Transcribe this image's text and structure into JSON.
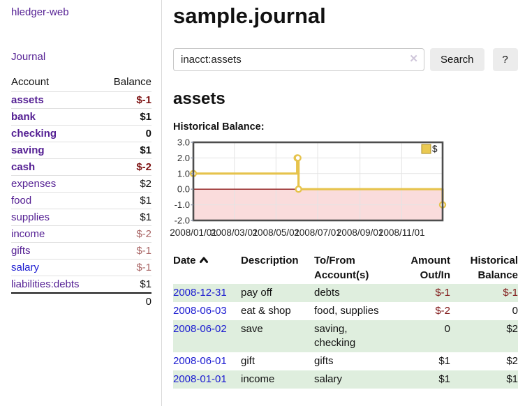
{
  "app": {
    "brand": "hledger-web",
    "nav_journal": "Journal"
  },
  "sidebar": {
    "headers": {
      "account": "Account",
      "balance": "Balance"
    },
    "accounts": [
      {
        "name": "assets",
        "balance": "$-1",
        "depth": 1,
        "bold": true,
        "balance_class": "neg"
      },
      {
        "name": "bank",
        "balance": "$1",
        "depth": 2,
        "bold": true,
        "balance_class": ""
      },
      {
        "name": "checking",
        "balance": "0",
        "depth": 3,
        "bold": true,
        "balance_class": ""
      },
      {
        "name": "saving",
        "balance": "$1",
        "depth": 3,
        "bold": true,
        "balance_class": ""
      },
      {
        "name": "cash",
        "balance": "$-2",
        "depth": 2,
        "bold": true,
        "balance_class": "neg"
      },
      {
        "name": "expenses",
        "balance": "$2",
        "depth": 1,
        "bold": false,
        "balance_class": ""
      },
      {
        "name": "food",
        "balance": "$1",
        "depth": 2,
        "bold": false,
        "balance_class": ""
      },
      {
        "name": "supplies",
        "balance": "$1",
        "depth": 2,
        "bold": false,
        "balance_class": ""
      },
      {
        "name": "income",
        "balance": "$-2",
        "depth": 1,
        "bold": false,
        "balance_class": "neg-faded"
      },
      {
        "name": "gifts",
        "balance": "$-1",
        "depth": 2,
        "bold": false,
        "balance_class": "neg-faded"
      },
      {
        "name": "salary",
        "balance": "$-1",
        "depth": 2,
        "bold": false,
        "balance_class": "neg-faded",
        "link_blue": true
      },
      {
        "name": "liabilities:debts",
        "balance": "$1",
        "depth": 1,
        "bold": false,
        "balance_class": ""
      }
    ],
    "total": "0"
  },
  "header": {
    "title": "sample.journal"
  },
  "search": {
    "value": "inacct:assets",
    "clear_icon": "✕",
    "button": "Search",
    "help_button": "?"
  },
  "account_page": {
    "title": "assets",
    "chart_label": "Historical Balance:"
  },
  "chart_data": {
    "type": "line",
    "title": "Historical Balance",
    "step": true,
    "grid": true,
    "legend": [
      {
        "label": "$",
        "color": "#eac951"
      }
    ],
    "legend_position": "top-right",
    "x": [
      "2008-01-01",
      "2008-06-01",
      "2008-06-02",
      "2008-06-03",
      "2008-12-31"
    ],
    "series": [
      {
        "name": "$",
        "values": [
          1,
          2,
          2,
          0,
          -1
        ]
      }
    ],
    "xlim": [
      "2008-01-01",
      "2008-12-31"
    ],
    "ylim": [
      -2,
      3
    ],
    "x_ticks": [
      "2008/01/01",
      "2008/03/01",
      "2008/05/01",
      "2008/07/01",
      "2008/09/01",
      "2008/11/01"
    ],
    "y_ticks": [
      "3.0",
      "2.0",
      "1.0",
      "0.0",
      "-1.0",
      "-2.0"
    ],
    "line_color": "#e6c34c",
    "marker_fill": "#ffffff",
    "negative_region_color": "#fadcdc",
    "zero_line_color": "#8c1717",
    "border_color": "#4d4d4d",
    "grid_color": "#e4e4e4"
  },
  "register": {
    "headers": [
      {
        "label": "Date",
        "sorted": "asc"
      },
      {
        "label": "Description"
      },
      {
        "label": "To/From Account(s)"
      },
      {
        "label": "Amount Out/In"
      },
      {
        "label": "Historical Balance"
      }
    ],
    "rows": [
      {
        "date": "2008-12-31",
        "description": "pay off",
        "accounts": "debts",
        "amount": "$-1",
        "balance": "$-1"
      },
      {
        "date": "2008-06-03",
        "description": "eat & shop",
        "accounts": "food, supplies",
        "amount": "$-2",
        "balance": "0"
      },
      {
        "date": "2008-06-02",
        "description": "save",
        "accounts": "saving, checking",
        "amount": "0",
        "balance": "$2"
      },
      {
        "date": "2008-06-01",
        "description": "gift",
        "accounts": "gifts",
        "amount": "$1",
        "balance": "$2"
      },
      {
        "date": "2008-01-01",
        "description": "income",
        "accounts": "salary",
        "amount": "$1",
        "balance": "$1"
      }
    ]
  },
  "colors": {
    "link_purple": "#541f93",
    "link_blue": "#1a1ad1",
    "negative": "#7e1414",
    "negative_faded": "#aa6767",
    "row_stripe_green": "#dfeede",
    "chart_gold": "#e6c34c",
    "chart_negative_region": "#fadcdc"
  }
}
